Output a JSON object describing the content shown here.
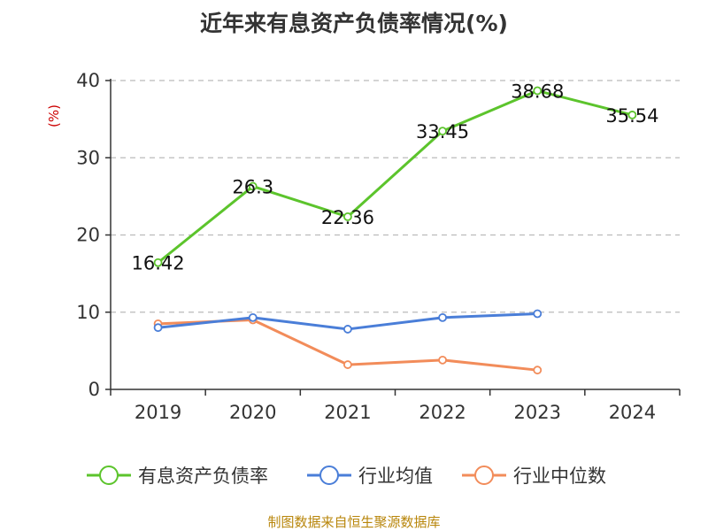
{
  "chart_data": {
    "type": "line",
    "title": "近年来有息资产负债率情况(%)",
    "ylabel": "(%)",
    "xlabel": "",
    "ylim": [
      0,
      40
    ],
    "yticks": [
      0,
      10,
      20,
      30,
      40
    ],
    "grid": true,
    "legend_position": "bottom",
    "categories": [
      "2019",
      "2020",
      "2021",
      "2022",
      "2023",
      "2024"
    ],
    "series": [
      {
        "name": "有息资产负债率",
        "color": "#5cc42c",
        "values": [
          16.42,
          26.3,
          22.36,
          33.45,
          38.68,
          35.54
        ],
        "data_labels": [
          "16.42",
          "26.3",
          "22.36",
          "33.45",
          "38.68",
          "35.54"
        ]
      },
      {
        "name": "行业均值",
        "color": "#4a7ed8",
        "values": [
          8.0,
          9.3,
          7.8,
          9.3,
          9.8,
          null
        ]
      },
      {
        "name": "行业中位数",
        "color": "#f28c5a",
        "values": [
          8.5,
          9.0,
          3.2,
          3.8,
          2.5,
          null
        ]
      }
    ],
    "source": "制图数据来自恒生聚源数据库"
  }
}
